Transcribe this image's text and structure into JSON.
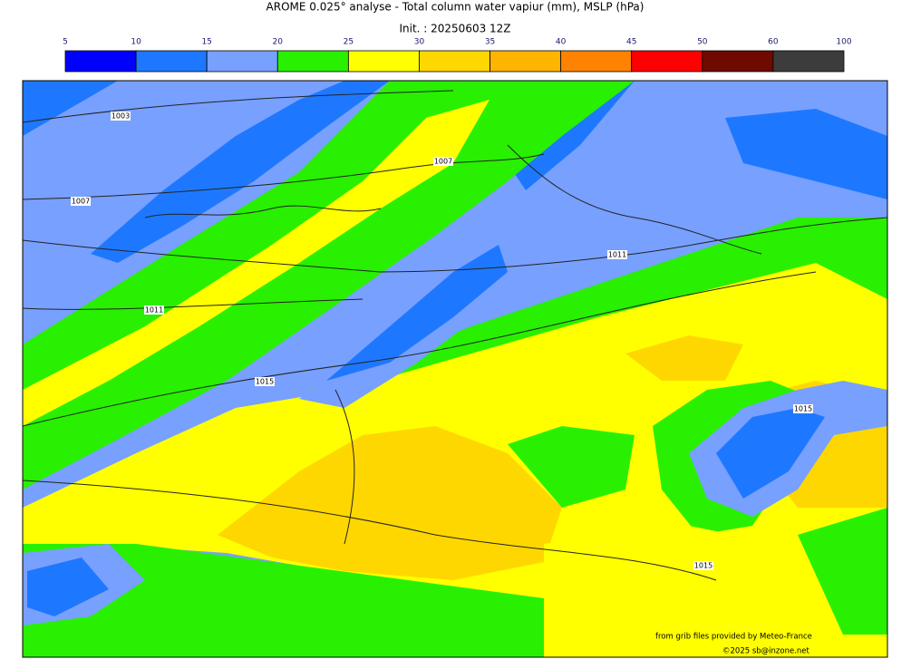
{
  "header": {
    "title": "AROME 0.025° analyse - Total column water vapiur (mm), MSLP (hPa)",
    "init": "Init. : 20250603 12Z"
  },
  "colorbar": {
    "bounds": [
      5,
      10,
      15,
      20,
      25,
      30,
      35,
      40,
      45,
      50,
      60,
      100
    ],
    "colors": [
      "#0000ff",
      "#1e78ff",
      "#78a0ff",
      "#28f000",
      "#ffff00",
      "#ffd700",
      "#ffb400",
      "#ff8200",
      "#ff0000",
      "#6e0a00",
      "#3c3c3c"
    ]
  },
  "isobar_labels": [
    1003,
    1007,
    1007,
    1011,
    1011,
    1015,
    1015,
    1015
  ],
  "credits": [
    "from grib files provided by Meteo-France",
    "©2025 sb@inzone.net"
  ]
}
